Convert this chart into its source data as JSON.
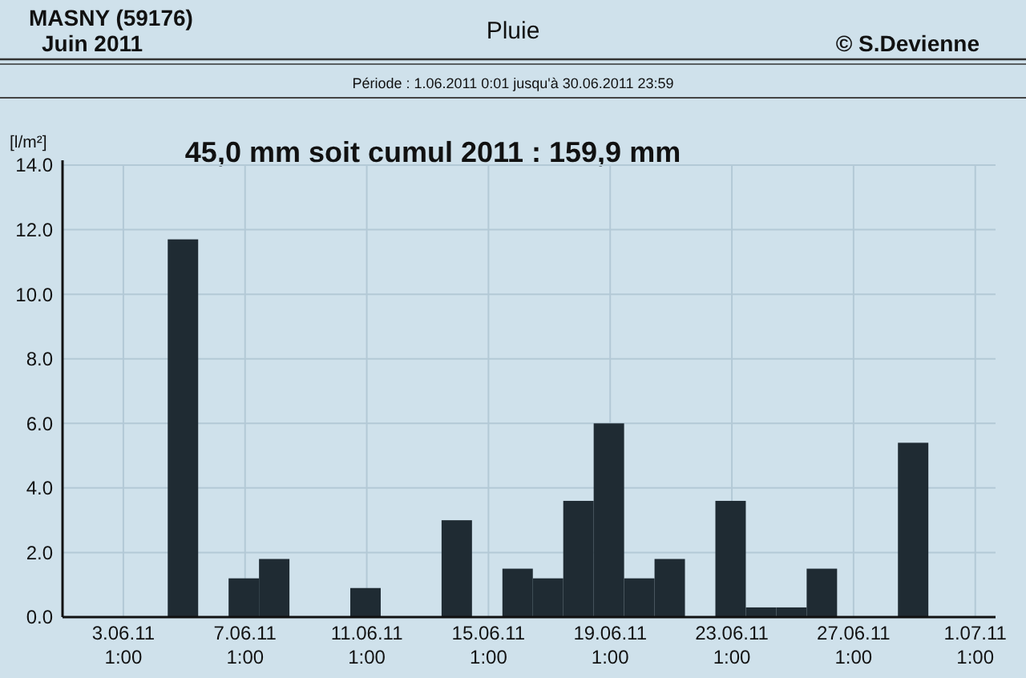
{
  "chart_data": {
    "type": "bar",
    "title": "Pluie",
    "subtitle": "45,0 mm  soit cumul 2011 : 159,9 mm",
    "ylabel": "[l/m²]",
    "annotations": [
      "MASNY (59176)",
      "Juin  2011",
      "© S.Devienne",
      "Période :  1.06.2011   0:01   jusqu'à  30.06.2011   23:59"
    ],
    "x": [
      "2011-06-05",
      "2011-06-07",
      "2011-06-08",
      "2011-06-11",
      "2011-06-14",
      "2011-06-16",
      "2011-06-17",
      "2011-06-18",
      "2011-06-19",
      "2011-06-20",
      "2011-06-21",
      "2011-06-23",
      "2011-06-24",
      "2011-06-25",
      "2011-06-26",
      "2011-06-29"
    ],
    "values": [
      11.7,
      1.2,
      1.8,
      0.9,
      3.0,
      1.5,
      1.2,
      3.6,
      6.0,
      1.2,
      1.8,
      3.6,
      0.3,
      0.3,
      1.5,
      5.4
    ],
    "color": "#1f2b33",
    "xlim": [
      "2011-06-01T01:00",
      "2011-07-01T17:00"
    ],
    "xticks": [
      {
        "value": "2011-06-03T01:00",
        "label": "3.06.11\n1:00"
      },
      {
        "value": "2011-06-07T01:00",
        "label": "7.06.11\n1:00"
      },
      {
        "value": "2011-06-11T01:00",
        "label": "11.06.11\n1:00"
      },
      {
        "value": "2011-06-15T01:00",
        "label": "15.06.11\n1:00"
      },
      {
        "value": "2011-06-19T01:00",
        "label": "19.06.11\n1:00"
      },
      {
        "value": "2011-06-23T01:00",
        "label": "23.06.11\n1:00"
      },
      {
        "value": "2011-06-27T01:00",
        "label": "27.06.11\n1:00"
      },
      {
        "value": "2011-07-01T01:00",
        "label": "1.07.11\n1:00"
      }
    ],
    "ylim": [
      0,
      14
    ],
    "yticks": [
      {
        "value": 0,
        "label": "0.0"
      },
      {
        "value": 2,
        "label": "2.0"
      },
      {
        "value": 4,
        "label": "4.0"
      },
      {
        "value": 6,
        "label": "6.0"
      },
      {
        "value": 8,
        "label": "8.0"
      },
      {
        "value": 10,
        "label": "10.0"
      },
      {
        "value": 12,
        "label": "12.0"
      },
      {
        "value": 14,
        "label": "14.0"
      }
    ],
    "grid": true
  }
}
